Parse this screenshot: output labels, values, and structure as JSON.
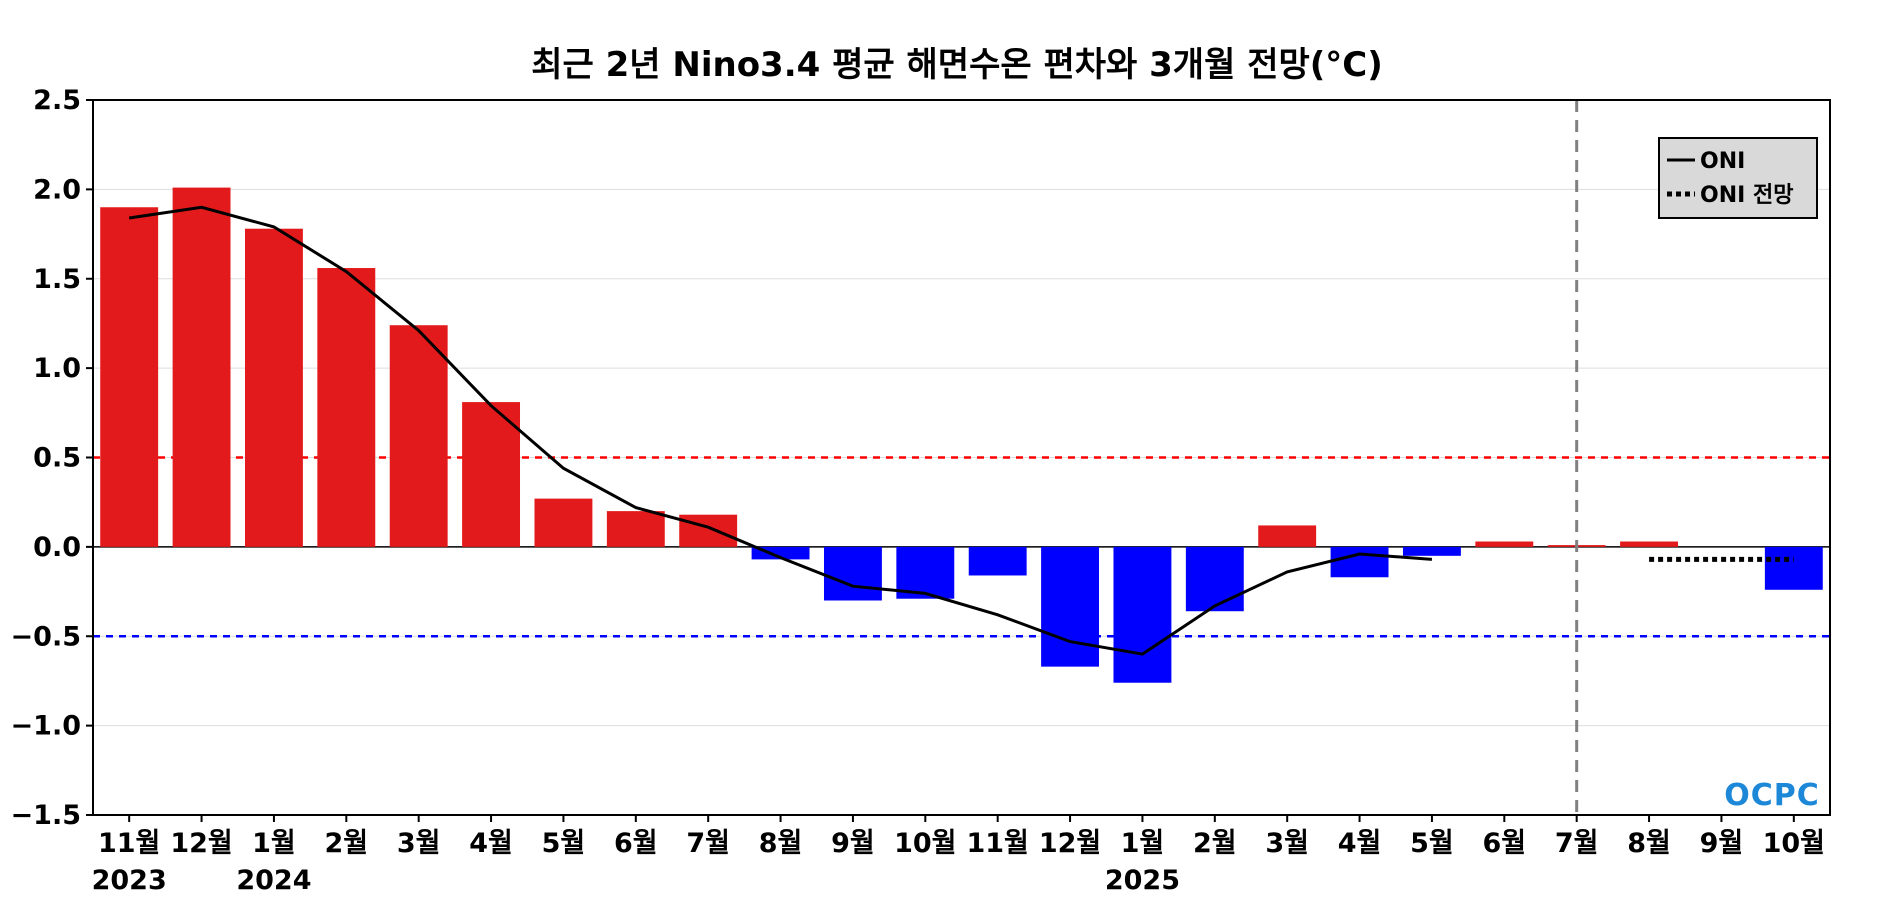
{
  "chart_data": {
    "type": "bar",
    "title": "최근 2년 Nino3.4 평균 해면수온 편차와 3개월 전망(°C)",
    "xlabel": "",
    "ylabel": "",
    "ylim": [
      -1.5,
      2.5
    ],
    "yticks": [
      "−1.5",
      "−1.0",
      "−0.5",
      "0.0",
      "0.5",
      "1.0",
      "1.5",
      "2.0",
      "2.5"
    ],
    "ytick_values": [
      -1.5,
      -1.0,
      -0.5,
      0.0,
      0.5,
      1.0,
      1.5,
      2.0,
      2.5
    ],
    "categories": [
      "11월",
      "12월",
      "1월",
      "2월",
      "3월",
      "4월",
      "5월",
      "6월",
      "7월",
      "8월",
      "9월",
      "10월",
      "11월",
      "12월",
      "1월",
      "2월",
      "3월",
      "4월",
      "5월",
      "6월",
      "7월",
      "8월",
      "9월",
      "10월"
    ],
    "year_labels": [
      {
        "index": 0,
        "label": "2023"
      },
      {
        "index": 2,
        "label": "2024"
      },
      {
        "index": 14,
        "label": "2025"
      }
    ],
    "series": [
      {
        "kind": "bar",
        "values": [
          1.9,
          2.01,
          1.78,
          1.56,
          1.24,
          0.81,
          0.27,
          0.2,
          0.18,
          -0.07,
          -0.3,
          -0.29,
          -0.16,
          -0.67,
          -0.76,
          -0.36,
          0.12,
          -0.17,
          -0.05,
          0.03,
          0.01,
          0.03,
          0.0,
          -0.24
        ]
      },
      {
        "kind": "line",
        "name": "ONI",
        "values": [
          1.84,
          1.9,
          1.79,
          1.54,
          1.21,
          0.79,
          0.44,
          0.22,
          0.11,
          -0.06,
          -0.22,
          -0.26,
          -0.38,
          -0.53,
          -0.6,
          -0.33,
          -0.14,
          -0.04,
          -0.07,
          null,
          null,
          null,
          null,
          null
        ]
      },
      {
        "kind": "line-dotted",
        "name": "ONI 전망",
        "values": [
          null,
          null,
          null,
          null,
          null,
          null,
          null,
          null,
          null,
          null,
          null,
          null,
          null,
          null,
          null,
          null,
          null,
          null,
          null,
          null,
          null,
          -0.07,
          -0.07,
          -0.07
        ]
      }
    ],
    "reference_lines": [
      {
        "y": 0.5,
        "style": "dashed",
        "color": "#ff0000"
      },
      {
        "y": -0.5,
        "style": "dashed",
        "color": "#0000ff"
      },
      {
        "y": 0.0,
        "style": "solid",
        "color": "#000000"
      }
    ],
    "forecast_start_index": 20,
    "legend_placement": "top-right",
    "grid": "horizontal",
    "colors": {
      "positive": "#e31a1c",
      "negative": "#0000ff",
      "line": "#000000",
      "forecast_divider": "#808080"
    }
  },
  "logo": "OCPC"
}
